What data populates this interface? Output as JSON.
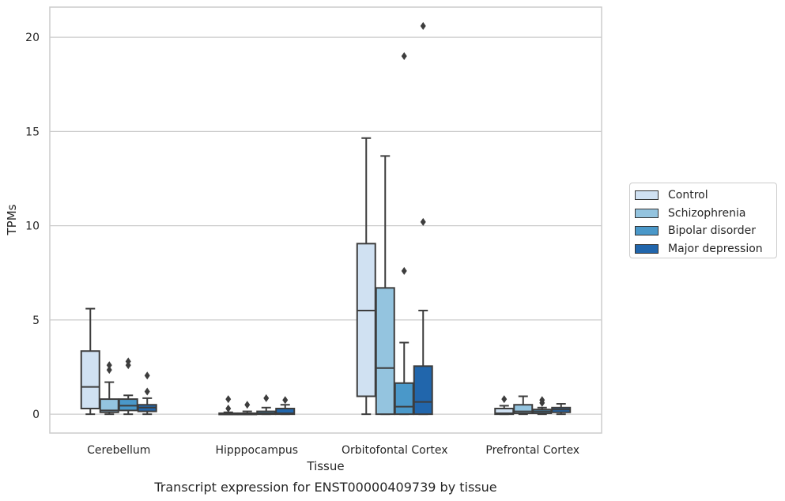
{
  "chart_data": {
    "type": "box",
    "title": "Transcript expression for ENST00000409739 by tissue",
    "xlabel": "Tissue",
    "ylabel": "TPMs",
    "ylim": [
      -1,
      21.6
    ],
    "yticks": [
      0,
      5,
      10,
      15,
      20
    ],
    "grid": "horizontal",
    "legend_position": "right",
    "categories": [
      "Cerebellum",
      "Hipppocampus",
      "Orbitofontal Cortex",
      "Prefrontal Cortex"
    ],
    "series": [
      {
        "name": "Control",
        "color": "#d0e1f2",
        "boxes": [
          {
            "whisker_low": 0.0,
            "q1": 0.3,
            "median": 1.45,
            "q3": 3.35,
            "whisker_high": 5.6,
            "outliers": []
          },
          {
            "whisker_low": 0.0,
            "q1": 0.0,
            "median": 0.0,
            "q3": 0.05,
            "whisker_high": 0.1,
            "outliers": [
              0.3,
              0.8
            ]
          },
          {
            "whisker_low": 0.0,
            "q1": 0.95,
            "median": 5.5,
            "q3": 9.05,
            "whisker_high": 14.65,
            "outliers": []
          },
          {
            "whisker_low": 0.0,
            "q1": 0.0,
            "median": 0.05,
            "q3": 0.3,
            "whisker_high": 0.45,
            "outliers": [
              0.8
            ]
          }
        ]
      },
      {
        "name": "Schizophrenia",
        "color": "#94c4df",
        "boxes": [
          {
            "whisker_low": 0.0,
            "q1": 0.1,
            "median": 0.2,
            "q3": 0.8,
            "whisker_high": 1.7,
            "outliers": [
              2.35,
              2.6
            ]
          },
          {
            "whisker_low": 0.0,
            "q1": 0.0,
            "median": 0.0,
            "q3": 0.05,
            "whisker_high": 0.15,
            "outliers": [
              0.5
            ]
          },
          {
            "whisker_low": 0.0,
            "q1": 0.0,
            "median": 2.45,
            "q3": 6.7,
            "whisker_high": 13.7,
            "outliers": []
          },
          {
            "whisker_low": 0.0,
            "q1": 0.05,
            "median": 0.15,
            "q3": 0.5,
            "whisker_high": 0.95,
            "outliers": []
          }
        ]
      },
      {
        "name": "Bipolar disorder",
        "color": "#4a98c9",
        "boxes": [
          {
            "whisker_low": 0.0,
            "q1": 0.2,
            "median": 0.45,
            "q3": 0.8,
            "whisker_high": 1.0,
            "outliers": [
              2.6,
              2.8
            ]
          },
          {
            "whisker_low": 0.0,
            "q1": 0.0,
            "median": 0.05,
            "q3": 0.15,
            "whisker_high": 0.35,
            "outliers": [
              0.85
            ]
          },
          {
            "whisker_low": 0.0,
            "q1": 0.0,
            "median": 0.4,
            "q3": 1.65,
            "whisker_high": 3.8,
            "outliers": [
              7.6,
              19.0
            ]
          },
          {
            "whisker_low": 0.0,
            "q1": 0.05,
            "median": 0.15,
            "q3": 0.25,
            "whisker_high": 0.35,
            "outliers": [
              0.6,
              0.75
            ]
          }
        ]
      },
      {
        "name": "Major depression",
        "color": "#2166ac",
        "boxes": [
          {
            "whisker_low": 0.0,
            "q1": 0.15,
            "median": 0.35,
            "q3": 0.5,
            "whisker_high": 0.85,
            "outliers": [
              1.2,
              2.05
            ]
          },
          {
            "whisker_low": 0.0,
            "q1": 0.0,
            "median": 0.05,
            "q3": 0.3,
            "whisker_high": 0.5,
            "outliers": [
              0.75
            ]
          },
          {
            "whisker_low": 0.0,
            "q1": 0.0,
            "median": 0.65,
            "q3": 2.55,
            "whisker_high": 5.5,
            "outliers": [
              10.2,
              20.6
            ]
          },
          {
            "whisker_low": 0.0,
            "q1": 0.1,
            "median": 0.25,
            "q3": 0.35,
            "whisker_high": 0.55,
            "outliers": []
          }
        ]
      }
    ]
  }
}
